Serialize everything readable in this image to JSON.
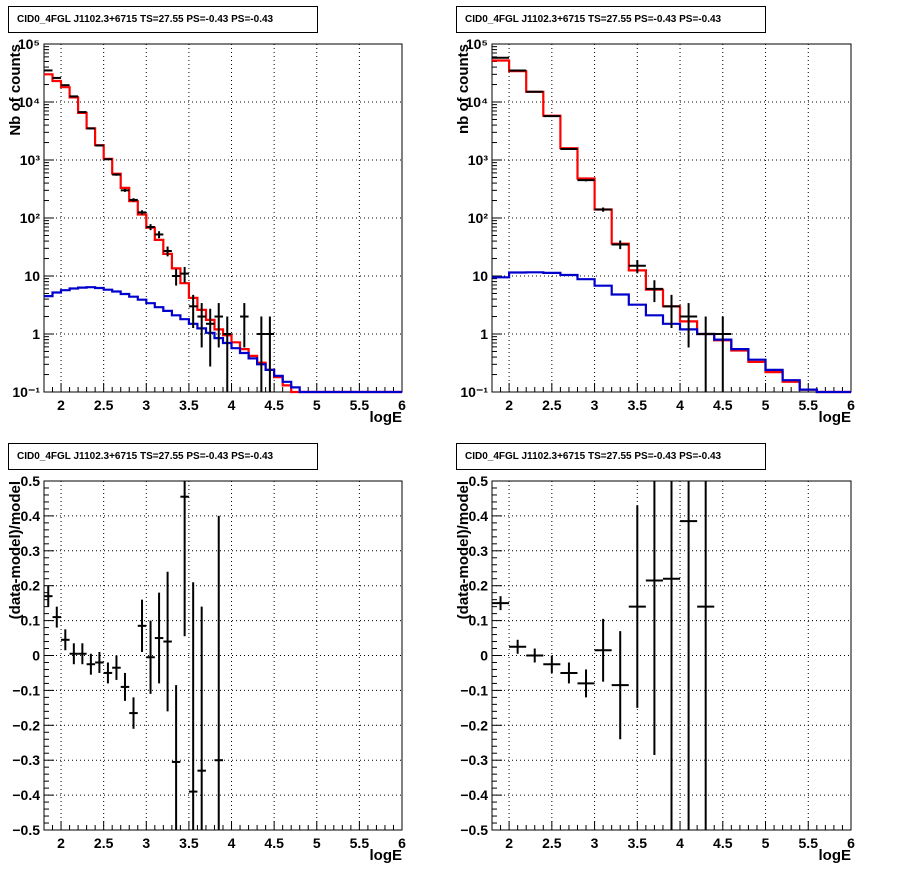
{
  "colors": {
    "data": "#000000",
    "total_model": "#ff0000",
    "source_model": "#0000cc",
    "grid": "#000000"
  },
  "chart_data": [
    {
      "id": "counts-left",
      "type": "line",
      "title": "CID0_4FGL J1102.3+6715 TS=27.55 PS=-0.43 PS=-0.43",
      "xlabel": "logE",
      "ylabel": "Nb of counts",
      "xlim": [
        1.8,
        6.0
      ],
      "ylim": [
        0.1,
        100000
      ],
      "yscale": "log",
      "grid": true,
      "xticks": [
        2,
        2.5,
        3,
        3.5,
        4,
        4.5,
        5,
        5.5,
        6
      ],
      "xtick_labels": [
        "2",
        "2.5",
        "3",
        "3.5",
        "4",
        "4.5",
        "5",
        "5.5",
        "6"
      ],
      "yticks": [
        0.1,
        1,
        10,
        100,
        1000,
        10000,
        100000
      ],
      "ytick_labels": [
        "10⁻¹",
        "1",
        "10",
        "10²",
        "10³",
        "10⁴",
        "10⁵"
      ],
      "bin_edges": [
        1.8,
        1.9,
        2.0,
        2.1,
        2.2,
        2.3,
        2.4,
        2.5,
        2.6,
        2.7,
        2.8,
        2.9,
        3.0,
        3.1,
        3.2,
        3.3,
        3.4,
        3.5,
        3.6,
        3.7,
        3.8,
        3.9,
        4.0,
        4.1,
        4.2,
        4.3,
        4.4,
        4.5,
        4.6,
        4.7,
        4.8,
        4.9,
        5.0,
        5.1,
        5.2,
        5.3,
        5.4,
        5.5,
        5.6,
        5.7,
        5.8,
        5.9,
        6.0
      ],
      "series": [
        {
          "name": "",
          "role": "total_model",
          "style": "step",
          "values": [
            30000,
            23000,
            18000,
            12000,
            6500,
            3500,
            1800,
            1050,
            580,
            330,
            195,
            115,
            68,
            42,
            24,
            13.5,
            7.5,
            4.2,
            2.6,
            1.75,
            1.2,
            0.95,
            0.72,
            0.55,
            0.42,
            0.32,
            0.24,
            0.18,
            0.13,
            0.1,
            0.1,
            0.1,
            0.1,
            0.1,
            0.1,
            0.1,
            0.1,
            0.1,
            0.1,
            0.1,
            0.1,
            0.1
          ]
        },
        {
          "name": "",
          "role": "source_model",
          "style": "step",
          "values": [
            4.5,
            5.2,
            5.7,
            6.1,
            6.3,
            6.4,
            6.2,
            5.8,
            5.4,
            4.9,
            4.4,
            3.9,
            3.4,
            2.9,
            2.5,
            2.1,
            1.8,
            1.5,
            1.25,
            1.05,
            0.85,
            0.7,
            0.57,
            0.47,
            0.38,
            0.3,
            0.24,
            0.19,
            0.15,
            0.12,
            0.1,
            0.1,
            0.1,
            0.1,
            0.1,
            0.1,
            0.1,
            0.1,
            0.1,
            0.1,
            0.1,
            0.1
          ]
        },
        {
          "name": "",
          "role": "data",
          "style": "errorbar",
          "points": [
            {
              "x": 1.85,
              "y": 35000
            },
            {
              "x": 1.95,
              "y": 26000
            },
            {
              "x": 2.05,
              "y": 19500
            },
            {
              "x": 2.15,
              "y": 12500
            },
            {
              "x": 2.25,
              "y": 6700
            },
            {
              "x": 2.35,
              "y": 3500
            },
            {
              "x": 2.45,
              "y": 1780
            },
            {
              "x": 2.55,
              "y": 1030
            },
            {
              "x": 2.65,
              "y": 560
            },
            {
              "x": 2.75,
              "y": 300
            },
            {
              "x": 2.85,
              "y": 205
            },
            {
              "x": 2.95,
              "y": 125
            },
            {
              "x": 3.05,
              "y": 70
            },
            {
              "x": 3.15,
              "y": 52
            },
            {
              "x": 3.25,
              "y": 27
            },
            {
              "x": 3.35,
              "y": 10
            },
            {
              "x": 3.45,
              "y": 11
            },
            {
              "x": 3.55,
              "y": 3
            },
            {
              "x": 3.65,
              "y": 2
            },
            {
              "x": 3.75,
              "y": 1.5
            },
            {
              "x": 3.85,
              "y": 2
            },
            {
              "x": 3.95,
              "y": 1
            },
            {
              "x": 4.15,
              "y": 2
            },
            {
              "x": 4.35,
              "y": 1
            },
            {
              "x": 4.45,
              "y": 1
            }
          ]
        }
      ]
    },
    {
      "id": "counts-right",
      "type": "line",
      "title": "CID0_4FGL J1102.3+6715 TS=27.55 PS=-0.43 PS=-0.43",
      "xlabel": "logE",
      "ylabel": "nb of counts",
      "xlim": [
        1.8,
        6.0
      ],
      "ylim": [
        0.1,
        100000
      ],
      "yscale": "log",
      "grid": true,
      "xticks": [
        2,
        2.5,
        3,
        3.5,
        4,
        4.5,
        5,
        5.5,
        6
      ],
      "xtick_labels": [
        "2",
        "2.5",
        "3",
        "3.5",
        "4",
        "4.5",
        "5",
        "5.5",
        "6"
      ],
      "yticks": [
        0.1,
        1,
        10,
        100,
        1000,
        10000,
        100000
      ],
      "ytick_labels": [
        "10⁻¹",
        "1",
        "10",
        "10²",
        "10³",
        "10⁴",
        "10⁵"
      ],
      "bin_edges": [
        1.8,
        2.0,
        2.2,
        2.4,
        2.6,
        2.8,
        3.0,
        3.2,
        3.4,
        3.6,
        3.8,
        4.0,
        4.2,
        4.4,
        4.6,
        4.8,
        5.0,
        5.2,
        5.4,
        5.6,
        5.8,
        6.0
      ],
      "series": [
        {
          "name": "",
          "role": "total_model",
          "style": "step",
          "values": [
            52000,
            34000,
            15000,
            5800,
            1600,
            480,
            140,
            36,
            12.5,
            5.8,
            3.0,
            1.65,
            1.0,
            0.78,
            0.52,
            0.33,
            0.22,
            0.15,
            0.11,
            0.1,
            0.1
          ]
        },
        {
          "name": "",
          "role": "source_model",
          "style": "step",
          "values": [
            9.5,
            11.5,
            11.6,
            11.3,
            10.4,
            8.8,
            6.8,
            4.8,
            3.2,
            2.1,
            1.5,
            1.2,
            1.0,
            0.8,
            0.55,
            0.36,
            0.24,
            0.16,
            0.11,
            0.1,
            0.1
          ]
        },
        {
          "name": "",
          "role": "data",
          "style": "errorbar",
          "points": [
            {
              "x": 1.9,
              "y": 58000
            },
            {
              "x": 2.1,
              "y": 35000
            },
            {
              "x": 2.3,
              "y": 15000
            },
            {
              "x": 2.5,
              "y": 5700
            },
            {
              "x": 2.7,
              "y": 1550
            },
            {
              "x": 2.9,
              "y": 450
            },
            {
              "x": 3.1,
              "y": 140
            },
            {
              "x": 3.3,
              "y": 35
            },
            {
              "x": 3.5,
              "y": 15
            },
            {
              "x": 3.7,
              "y": 6
            },
            {
              "x": 3.9,
              "y": 3
            },
            {
              "x": 4.1,
              "y": 2
            },
            {
              "x": 4.3,
              "y": 1
            },
            {
              "x": 4.5,
              "y": 1
            }
          ]
        }
      ]
    },
    {
      "id": "residuals-left",
      "type": "scatter",
      "title": "CID0_4FGL J1102.3+6715 TS=27.55 PS=-0.43 PS=-0.43",
      "xlabel": "logE",
      "ylabel": "(data-model)/model",
      "xlim": [
        1.8,
        6.0
      ],
      "ylim": [
        -0.5,
        0.5
      ],
      "yscale": "linear",
      "grid": true,
      "xticks": [
        2,
        2.5,
        3,
        3.5,
        4,
        4.5,
        5,
        5.5,
        6
      ],
      "xtick_labels": [
        "2",
        "2.5",
        "3",
        "3.5",
        "4",
        "4.5",
        "5",
        "5.5",
        "6"
      ],
      "yticks": [
        -0.5,
        -0.4,
        -0.3,
        -0.2,
        -0.1,
        0,
        0.1,
        0.2,
        0.3,
        0.4,
        0.5
      ],
      "ytick_labels": [
        "−0.5",
        "−0.4",
        "−0.3",
        "−0.2",
        "−0.1",
        "0",
        "0.1",
        "0.2",
        "0.3",
        "0.4",
        "0.5"
      ],
      "series": [
        {
          "name": "",
          "role": "data",
          "style": "errorbar",
          "points": [
            {
              "x": 1.85,
              "y": 0.17,
              "err": 0.03
            },
            {
              "x": 1.95,
              "y": 0.11,
              "err": 0.03
            },
            {
              "x": 2.05,
              "y": 0.045,
              "err": 0.03
            },
            {
              "x": 2.15,
              "y": 0.005,
              "err": 0.03
            },
            {
              "x": 2.25,
              "y": 0.005,
              "err": 0.03
            },
            {
              "x": 2.35,
              "y": -0.025,
              "err": 0.03
            },
            {
              "x": 2.45,
              "y": -0.02,
              "err": 0.03
            },
            {
              "x": 2.55,
              "y": -0.05,
              "err": 0.03
            },
            {
              "x": 2.65,
              "y": -0.035,
              "err": 0.035
            },
            {
              "x": 2.75,
              "y": -0.09,
              "err": 0.04
            },
            {
              "x": 2.85,
              "y": -0.165,
              "err": 0.045
            },
            {
              "x": 2.95,
              "y": 0.085,
              "err": 0.075
            },
            {
              "x": 3.05,
              "y": -0.005,
              "err": 0.105
            },
            {
              "x": 3.15,
              "y": 0.05,
              "err": 0.13
            },
            {
              "x": 3.25,
              "y": 0.04,
              "err": 0.2
            },
            {
              "x": 3.35,
              "y": -0.305,
              "err": 0.22
            },
            {
              "x": 3.45,
              "y": 0.455,
              "err": 0.4
            },
            {
              "x": 3.55,
              "y": -0.39,
              "err": 0.6
            },
            {
              "x": 3.65,
              "y": -0.33,
              "err": 0.47
            },
            {
              "x": 3.85,
              "y": -0.3,
              "err": 0.7
            }
          ]
        }
      ]
    },
    {
      "id": "residuals-right",
      "type": "scatter",
      "title": "CID0_4FGL J1102.3+6715 TS=27.55 PS=-0.43 PS=-0.43",
      "xlabel": "logE",
      "ylabel": "(data-model)/model",
      "xlim": [
        1.8,
        6.0
      ],
      "ylim": [
        -0.5,
        0.5
      ],
      "yscale": "linear",
      "grid": true,
      "xticks": [
        2,
        2.5,
        3,
        3.5,
        4,
        4.5,
        5,
        5.5,
        6
      ],
      "xtick_labels": [
        "2",
        "2.5",
        "3",
        "3.5",
        "4",
        "4.5",
        "5",
        "5.5",
        "6"
      ],
      "yticks": [
        -0.5,
        -0.4,
        -0.3,
        -0.2,
        -0.1,
        0,
        0.1,
        0.2,
        0.3,
        0.4,
        0.5
      ],
      "ytick_labels": [
        "−0.5",
        "−0.4",
        "−0.3",
        "−0.2",
        "−0.1",
        "0",
        "0.1",
        "0.2",
        "0.3",
        "0.4",
        "0.5"
      ],
      "series": [
        {
          "name": "",
          "role": "data",
          "style": "errorbar",
          "points": [
            {
              "x": 1.9,
              "y": 0.15,
              "err": 0.02
            },
            {
              "x": 2.1,
              "y": 0.025,
              "err": 0.02
            },
            {
              "x": 2.3,
              "y": 0.0,
              "err": 0.02
            },
            {
              "x": 2.5,
              "y": -0.025,
              "err": 0.025
            },
            {
              "x": 2.7,
              "y": -0.05,
              "err": 0.03
            },
            {
              "x": 2.9,
              "y": -0.08,
              "err": 0.04
            },
            {
              "x": 3.1,
              "y": 0.015,
              "err": 0.09
            },
            {
              "x": 3.3,
              "y": -0.085,
              "err": 0.155
            },
            {
              "x": 3.5,
              "y": 0.14,
              "err": 0.29
            },
            {
              "x": 3.7,
              "y": 0.215,
              "err": 0.5
            },
            {
              "x": 3.9,
              "y": 0.22,
              "err": 0.75
            },
            {
              "x": 4.1,
              "y": 0.385,
              "err": 1.0
            },
            {
              "x": 4.3,
              "y": 0.14,
              "err": 0.8
            }
          ]
        }
      ]
    }
  ]
}
